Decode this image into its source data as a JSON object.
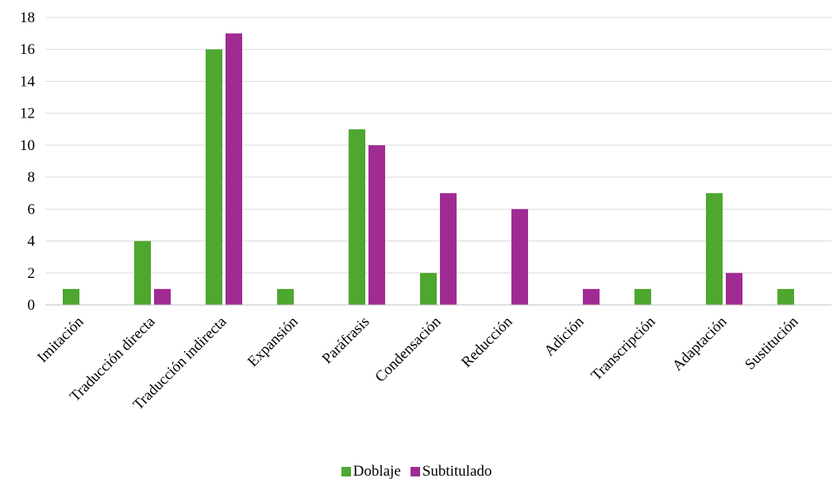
{
  "chart_data": {
    "type": "bar",
    "categories": [
      "Imitación",
      "Traducción directa",
      "Traducción indirecta",
      "Expansión",
      "Paráfrasis",
      "Condensación",
      "Reducción",
      "Adición",
      "Transcripción",
      "Adaptación",
      "Sustitución"
    ],
    "series": [
      {
        "name": "Doblaje",
        "color": "#4ea72e",
        "values": [
          1,
          4,
          16,
          1,
          11,
          2,
          0,
          0,
          1,
          7,
          1
        ]
      },
      {
        "name": "Subtitulado",
        "color": "#a02b93",
        "values": [
          0,
          1,
          17,
          0,
          10,
          7,
          6,
          1,
          0,
          2,
          0
        ]
      }
    ],
    "yticks": [
      "0",
      "2",
      "4",
      "6",
      "8",
      "10",
      "12",
      "14",
      "16",
      "18"
    ],
    "ylim": [
      0,
      18
    ],
    "grid": true,
    "legend_position": "bottom",
    "title": "",
    "xlabel": "",
    "ylabel": ""
  }
}
